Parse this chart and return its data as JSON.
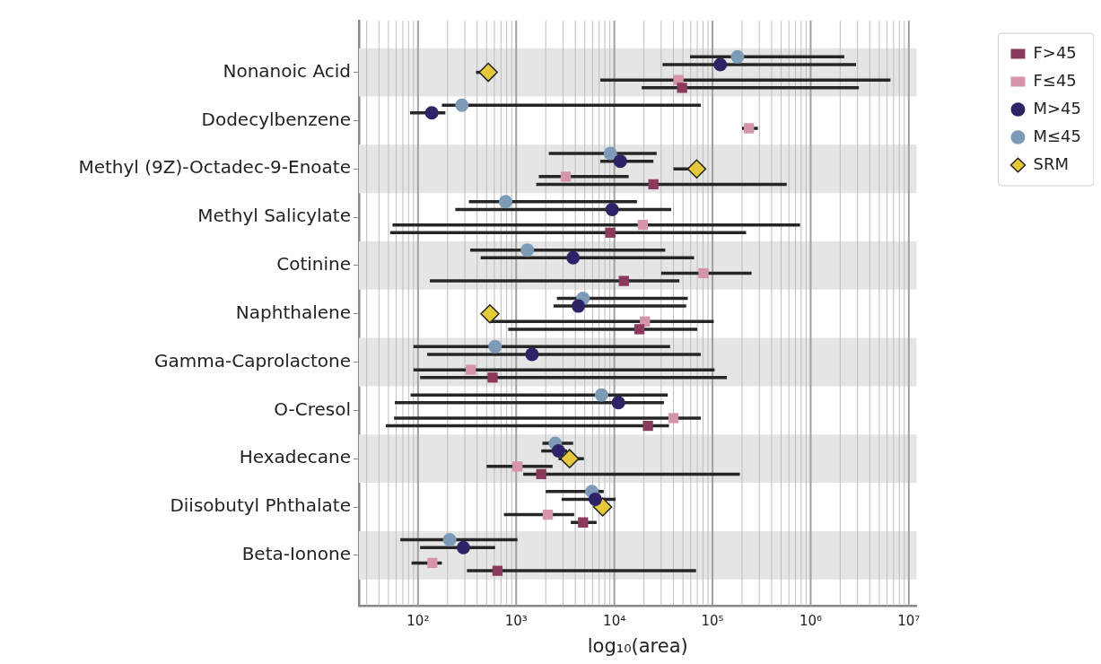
{
  "chart_data": {
    "type": "scatter",
    "orientation": "horizontal",
    "xlabel": "log₁₀(area)",
    "log": "x",
    "grid": "x",
    "legend": "right",
    "categories": [
      "Nonanoic Acid",
      "Dodecylbenzene",
      "Methyl (9Z)-Octadec-9-Enoate",
      "Methyl Salicylate",
      "Cotinine",
      "Naphthalene",
      "Gamma-Caprolactone",
      "O-Cresol",
      "Hexadecane",
      "Diisobutyl Phthalate",
      "Beta-Ionone"
    ],
    "xlim": [
      25,
      12000000
    ],
    "xticks": [
      {
        "value": 30,
        "label": null
      },
      {
        "value": 40,
        "label": null
      },
      {
        "value": 50,
        "label": null
      },
      {
        "value": 60,
        "label": null
      },
      {
        "value": 70,
        "label": null
      },
      {
        "value": 80,
        "label": null
      },
      {
        "value": 90,
        "label": null
      },
      {
        "value": 100,
        "label": "10²"
      },
      {
        "value": 200,
        "label": null
      },
      {
        "value": 300,
        "label": null
      },
      {
        "value": 400,
        "label": null
      },
      {
        "value": 500,
        "label": null
      },
      {
        "value": 600,
        "label": null
      },
      {
        "value": 700,
        "label": null
      },
      {
        "value": 800,
        "label": null
      },
      {
        "value": 900,
        "label": null
      },
      {
        "value": 1000,
        "label": "10³"
      },
      {
        "value": 2000,
        "label": null
      },
      {
        "value": 3000,
        "label": null
      },
      {
        "value": 4000,
        "label": null
      },
      {
        "value": 5000,
        "label": null
      },
      {
        "value": 6000,
        "label": null
      },
      {
        "value": 7000,
        "label": null
      },
      {
        "value": 8000,
        "label": null
      },
      {
        "value": 9000,
        "label": null
      },
      {
        "value": 10000,
        "label": "10⁴"
      },
      {
        "value": 20000,
        "label": null
      },
      {
        "value": 30000,
        "label": null
      },
      {
        "value": 40000,
        "label": null
      },
      {
        "value": 50000,
        "label": null
      },
      {
        "value": 60000,
        "label": null
      },
      {
        "value": 70000,
        "label": null
      },
      {
        "value": 80000,
        "label": null
      },
      {
        "value": 90000,
        "label": null
      },
      {
        "value": 100000,
        "label": "10⁵"
      },
      {
        "value": 200000,
        "label": null
      },
      {
        "value": 300000,
        "label": null
      },
      {
        "value": 400000,
        "label": null
      },
      {
        "value": 500000,
        "label": null
      },
      {
        "value": 600000,
        "label": null
      },
      {
        "value": 700000,
        "label": null
      },
      {
        "value": 800000,
        "label": null
      },
      {
        "value": 900000,
        "label": null
      },
      {
        "value": 1000000,
        "label": "10⁶"
      },
      {
        "value": 2000000,
        "label": null
      },
      {
        "value": 3000000,
        "label": null
      },
      {
        "value": 4000000,
        "label": null
      },
      {
        "value": 5000000,
        "label": null
      },
      {
        "value": 6000000,
        "label": null
      },
      {
        "value": 7000000,
        "label": null
      },
      {
        "value": 8000000,
        "label": null
      },
      {
        "value": 9000000,
        "label": null
      },
      {
        "value": 10000000,
        "label": "10⁷"
      }
    ],
    "series": [
      {
        "name": "F>45",
        "color": "#8b3a5c",
        "marker": "square",
        "values": [
          49000,
          null,
          25000,
          9100,
          12500,
          18000,
          575,
          22000,
          1800,
          4800,
          645
        ],
        "errors": [
          [
            19000,
            3100000
          ],
          null,
          [
            1600,
            570000
          ],
          [
            52,
            220000
          ],
          [
            132,
            46000
          ],
          [
            830,
            70000
          ],
          [
            105,
            140000
          ],
          [
            47,
            36000
          ],
          [
            1180,
            190000
          ],
          [
            3600,
            6600
          ],
          [
            315,
            68000
          ]
        ]
      },
      {
        "name": "F≤45",
        "color": "#d595a8",
        "marker": "square",
        "values": [
          45000,
          235000,
          3200,
          19500,
          81000,
          20500,
          345,
          40000,
          1030,
          2100,
          140
        ],
        "errors": [
          [
            7200,
            6500000
          ],
          [
            200000,
            290000
          ],
          [
            1700,
            14000
          ],
          [
            55,
            780000
          ],
          [
            30000,
            250000
          ],
          [
            540,
            103000
          ],
          [
            90,
            105000
          ],
          [
            57,
            76000
          ],
          [
            500,
            2350
          ],
          [
            750,
            3900
          ],
          [
            86,
            175
          ]
        ]
      },
      {
        "name": "M>45",
        "color": "#2d2366",
        "marker": "circle",
        "values": [
          120000,
          138,
          11500,
          9500,
          3800,
          4300,
          1450,
          11000,
          2700,
          6400,
          290
        ],
        "errors": [
          [
            31000,
            2900000
          ],
          [
            83,
            190
          ],
          [
            7200,
            25000
          ],
          [
            240,
            38000
          ],
          [
            435,
            65000
          ],
          [
            2400,
            54000
          ],
          [
            124,
            76000
          ],
          [
            58,
            32000
          ],
          [
            1800,
            3300
          ],
          [
            2900,
            10300
          ],
          [
            105,
            610
          ]
        ]
      },
      {
        "name": "M≤45",
        "color": "#7d9bb7",
        "marker": "circle",
        "values": [
          180000,
          280,
          9100,
          780,
          1300,
          4800,
          610,
          7400,
          2500,
          5900,
          210
        ],
        "errors": [
          [
            59000,
            2200000
          ],
          [
            175,
            76000
          ],
          [
            2150,
            27000
          ],
          [
            330,
            17000
          ],
          [
            340,
            33000
          ],
          [
            2600,
            56000
          ],
          [
            90,
            37000
          ],
          [
            84,
            35000
          ],
          [
            1850,
            3800
          ],
          [
            2000,
            7800
          ],
          [
            66,
            1030
          ]
        ]
      },
      {
        "name": "SRM",
        "color": "#e6c93a",
        "marker": "diamond",
        "values": [
          520,
          null,
          69000,
          null,
          null,
          540,
          null,
          null,
          3500,
          7600,
          null
        ],
        "errors": [
          [
            390,
            520
          ],
          null,
          [
            40000,
            69000
          ],
          null,
          null,
          null,
          null,
          null,
          [
            2700,
            4900
          ],
          null,
          null
        ]
      }
    ]
  }
}
